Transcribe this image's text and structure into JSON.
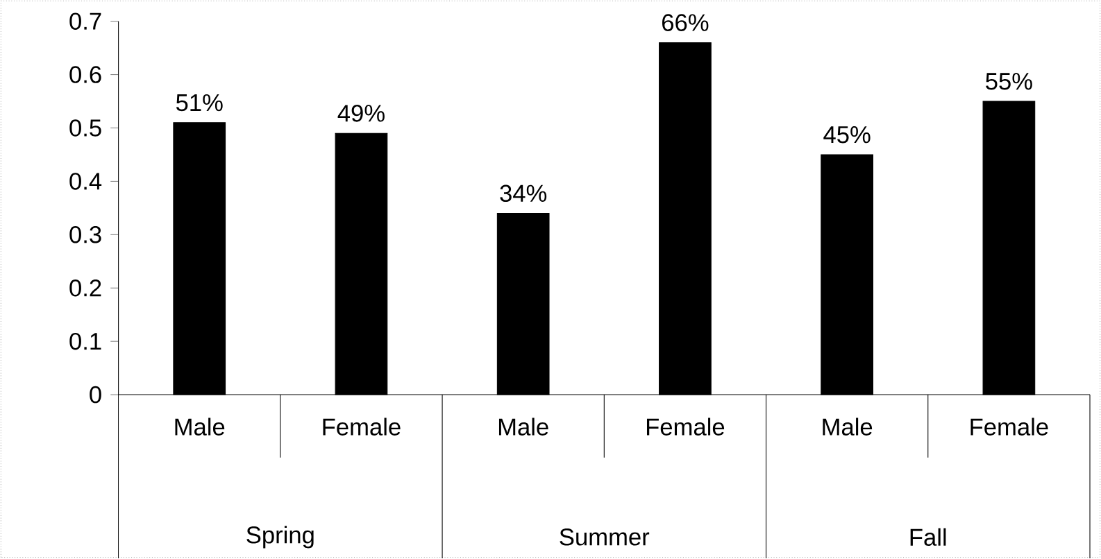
{
  "chart_data": {
    "type": "bar",
    "categories": [
      "Male",
      "Female",
      "Male",
      "Female",
      "Male",
      "Female"
    ],
    "values": [
      0.51,
      0.49,
      0.34,
      0.66,
      0.45,
      0.55
    ],
    "value_labels": [
      "51%",
      "49%",
      "34%",
      "66%",
      "45%",
      "55%"
    ],
    "color": "#000000",
    "ylim": [
      0,
      0.7
    ],
    "yticks": [
      0,
      0.1,
      0.2,
      0.3,
      0.4,
      0.5,
      0.6,
      0.7
    ],
    "annotations": [
      "Spring",
      "Summer",
      "Fall"
    ]
  }
}
